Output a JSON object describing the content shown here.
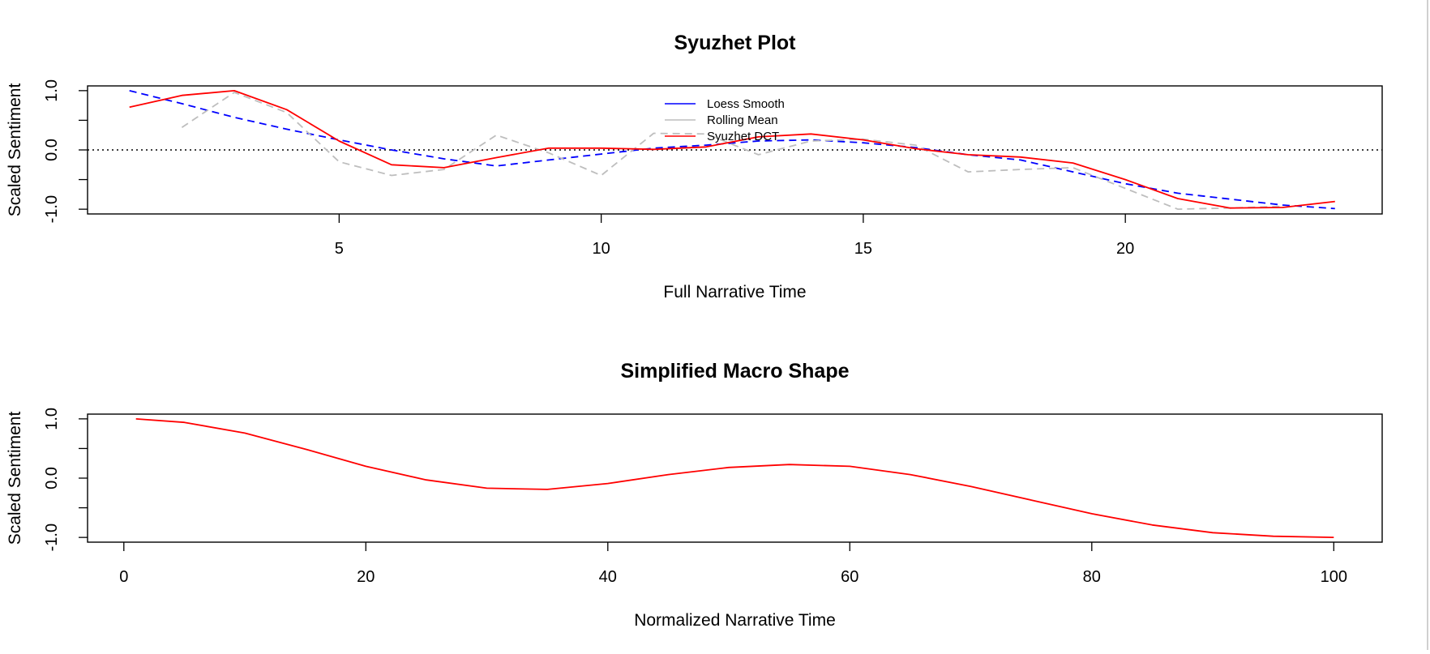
{
  "chart_data": [
    {
      "type": "line",
      "title": "Syuzhet Plot",
      "xlabel": "Full Narrative Time",
      "ylabel": "Scaled Sentiment",
      "xlim": [
        0.2,
        24.9
      ],
      "ylim": [
        -1.08,
        1.08
      ],
      "x_ticks": [
        5,
        10,
        15,
        20
      ],
      "y_ticks": [
        1.0,
        0.5,
        0.0,
        -0.5,
        -1.0
      ],
      "y_tick_labels": [
        "1.0",
        "0.0",
        "-1.0"
      ],
      "reference_line": {
        "y": 0.0,
        "style": "dotted"
      },
      "legend": {
        "position": "top-center"
      },
      "series": [
        {
          "name": "Loess Smooth",
          "color": "#0000ff",
          "style": "dashed",
          "x": [
            1,
            2,
            3,
            4,
            5,
            6,
            7,
            8,
            9,
            10,
            11,
            12,
            13,
            14,
            15,
            16,
            17,
            18,
            19,
            20,
            21,
            22,
            23,
            24
          ],
          "y": [
            1.0,
            0.78,
            0.55,
            0.35,
            0.17,
            0.0,
            -0.15,
            -0.27,
            -0.17,
            -0.07,
            0.03,
            0.08,
            0.15,
            0.17,
            0.12,
            0.04,
            -0.08,
            -0.17,
            -0.37,
            -0.57,
            -0.73,
            -0.83,
            -0.93,
            -0.99
          ]
        },
        {
          "name": "Rolling Mean",
          "color": "#bebebe",
          "style": "dashed",
          "x": [
            2,
            3,
            4,
            5,
            6,
            7,
            8,
            9,
            10,
            11,
            12,
            13,
            14,
            15,
            16,
            17,
            18,
            19,
            20,
            21,
            22,
            23
          ],
          "y": [
            0.38,
            0.97,
            0.63,
            -0.2,
            -0.43,
            -0.33,
            0.25,
            -0.05,
            -0.43,
            0.28,
            0.27,
            -0.08,
            0.15,
            0.18,
            0.08,
            -0.37,
            -0.33,
            -0.3,
            -0.65,
            -1.0,
            -0.98,
            -0.95
          ]
        },
        {
          "name": "Syuzhet DCT",
          "color": "#ff0000",
          "style": "solid",
          "x": [
            1,
            2,
            3,
            4,
            5,
            6,
            7,
            8,
            9,
            10,
            11,
            12,
            13,
            14,
            15,
            16,
            17,
            18,
            19,
            20,
            21,
            22,
            23,
            24
          ],
          "y": [
            0.72,
            0.92,
            1.0,
            0.68,
            0.15,
            -0.25,
            -0.3,
            -0.13,
            0.03,
            0.03,
            0.01,
            0.05,
            0.22,
            0.27,
            0.17,
            0.02,
            -0.08,
            -0.12,
            -0.22,
            -0.5,
            -0.82,
            -0.98,
            -0.97,
            -0.87
          ]
        }
      ]
    },
    {
      "type": "line",
      "title": "Simplified Macro Shape",
      "xlabel": "Normalized Narrative Time",
      "ylabel": "Scaled Sentiment",
      "xlim": [
        -3,
        104
      ],
      "ylim": [
        -1.08,
        1.08
      ],
      "x_ticks": [
        0,
        20,
        40,
        60,
        80,
        100
      ],
      "y_ticks": [
        1.0,
        0.5,
        0.0,
        -0.5,
        -1.0
      ],
      "y_tick_labels": [
        "1.0",
        "0.0",
        "-1.0"
      ],
      "series": [
        {
          "color": "#ff0000",
          "style": "solid",
          "x": [
            1,
            5,
            10,
            15,
            20,
            25,
            30,
            35,
            40,
            45,
            50,
            55,
            60,
            65,
            70,
            75,
            80,
            85,
            90,
            95,
            100
          ],
          "y": [
            1.0,
            0.94,
            0.76,
            0.49,
            0.2,
            -0.03,
            -0.17,
            -0.19,
            -0.09,
            0.06,
            0.18,
            0.23,
            0.2,
            0.06,
            -0.14,
            -0.37,
            -0.6,
            -0.79,
            -0.92,
            -0.98,
            -1.0
          ]
        }
      ]
    }
  ]
}
